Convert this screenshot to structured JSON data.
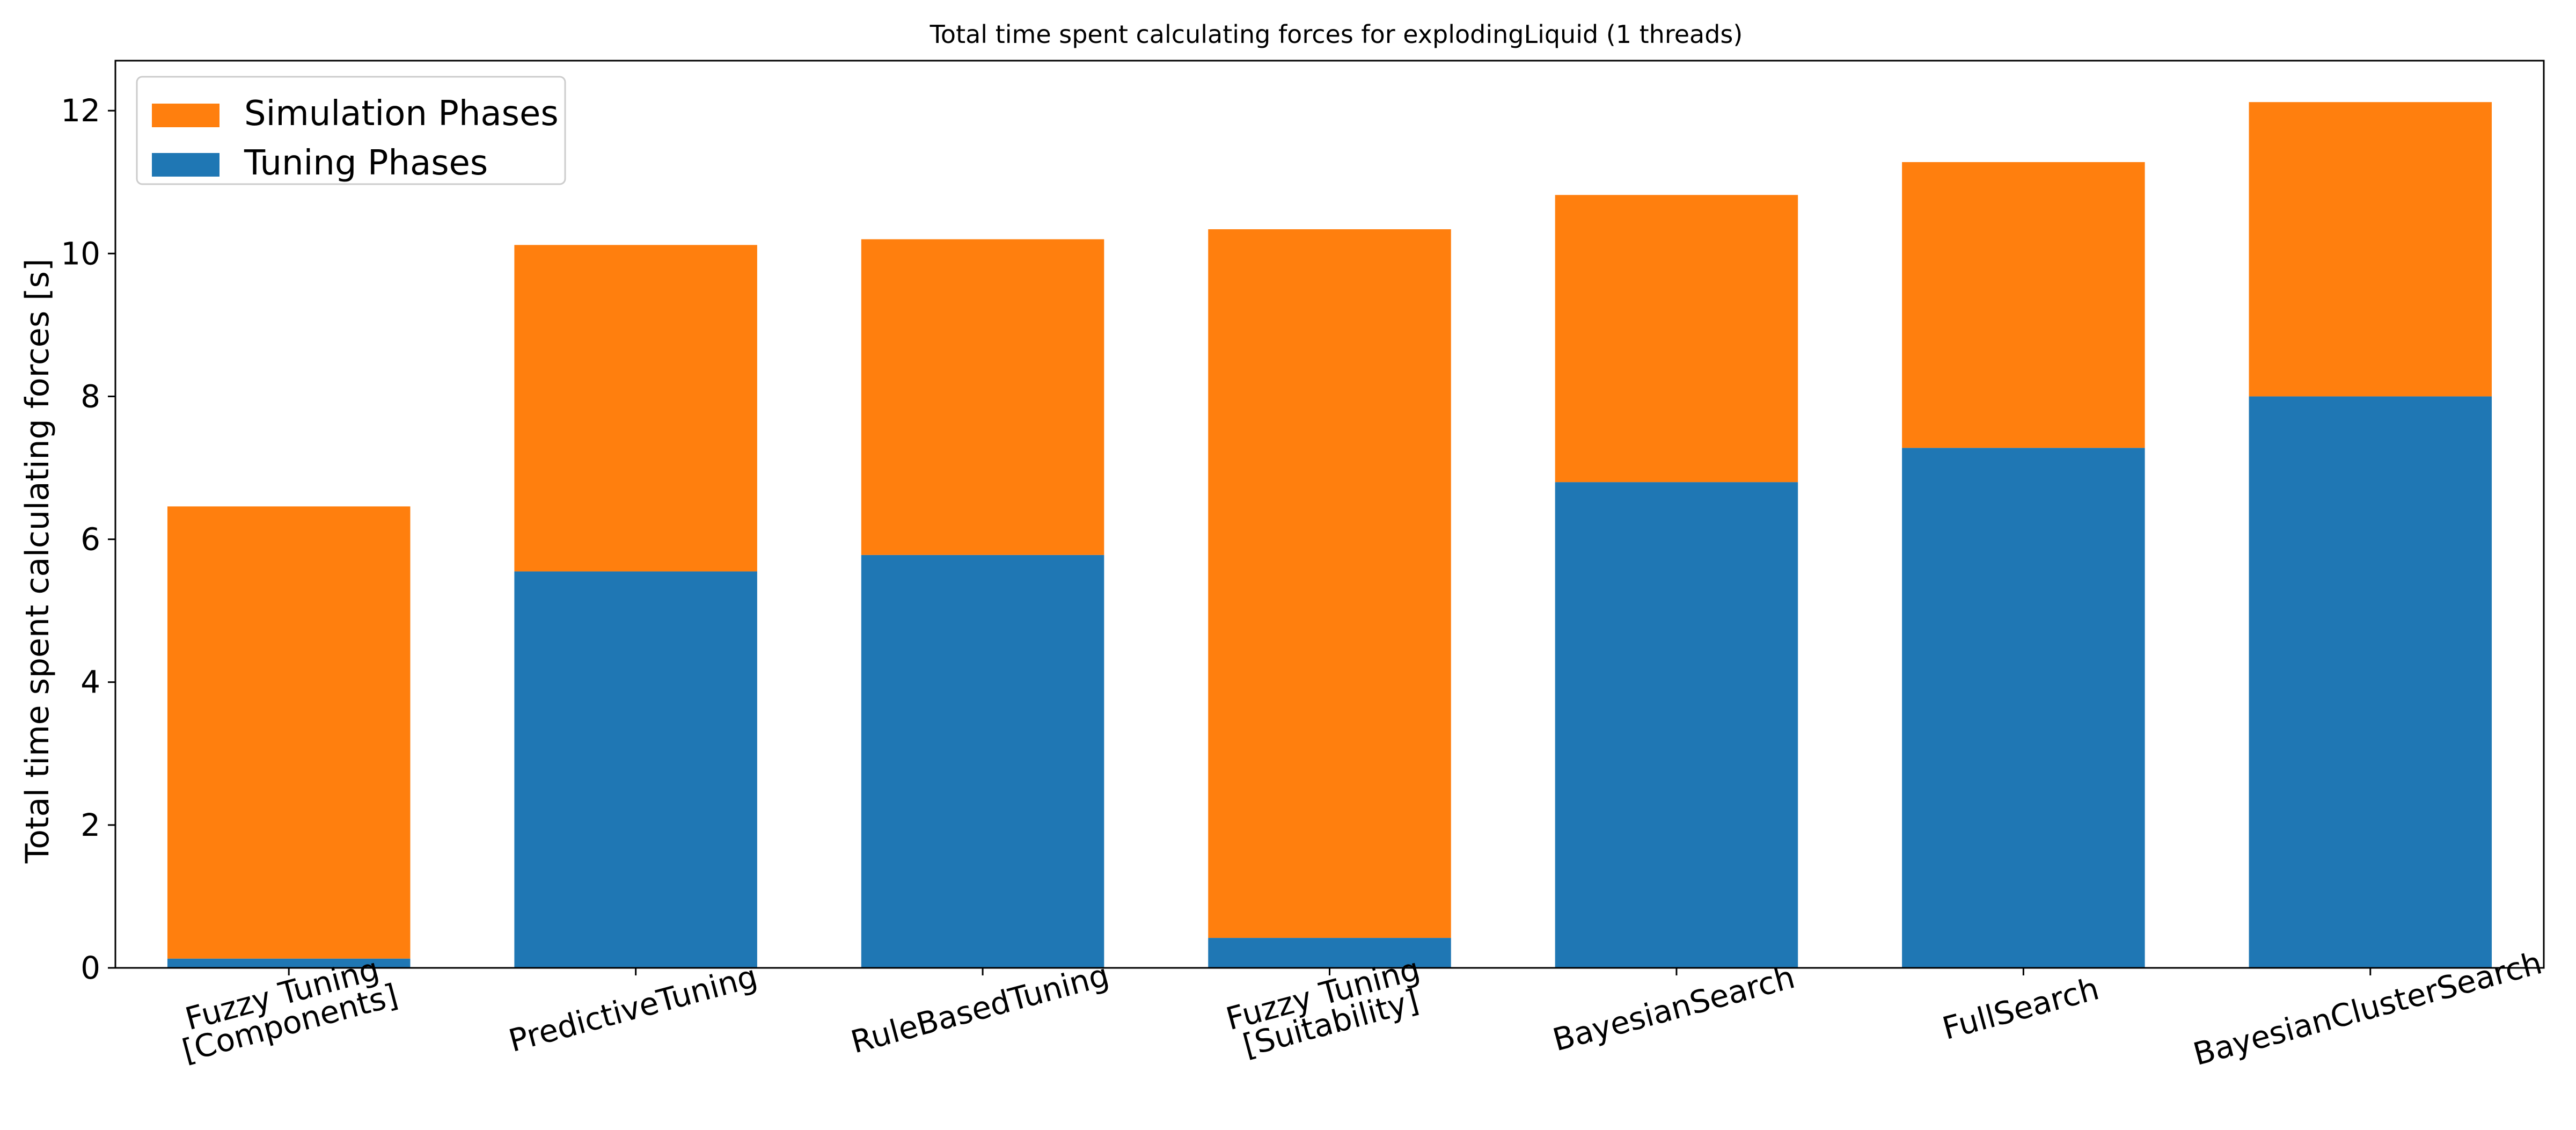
{
  "chart_data": {
    "type": "bar",
    "stacked": true,
    "title": "Total time spent calculating forces for explodingLiquid (1 threads)",
    "xlabel": "",
    "ylabel": "Total time spent calculating forces [s]",
    "ylim": [
      0,
      12.7
    ],
    "yticks": [
      0,
      2,
      4,
      6,
      8,
      10,
      12
    ],
    "categories": [
      [
        "Fuzzy Tuning",
        "[Components]"
      ],
      [
        "PredictiveTuning"
      ],
      [
        "RuleBasedTuning"
      ],
      [
        "Fuzzy Tuning",
        "[Suitability]"
      ],
      [
        "BayesianSearch"
      ],
      [
        "FullSearch"
      ],
      [
        "BayesianClusterSearch"
      ]
    ],
    "series": [
      {
        "name": "Tuning Phases",
        "color": "#1f77b4",
        "values": [
          0.13,
          5.55,
          5.78,
          0.42,
          6.8,
          7.28,
          8.0
        ]
      },
      {
        "name": "Simulation Phases",
        "color": "#ff7f0e",
        "values": [
          6.33,
          4.57,
          4.42,
          9.92,
          4.02,
          4.0,
          4.12
        ]
      }
    ],
    "legend": {
      "position": "top-left",
      "order": [
        "Simulation Phases",
        "Tuning Phases"
      ]
    },
    "grid": false
  }
}
